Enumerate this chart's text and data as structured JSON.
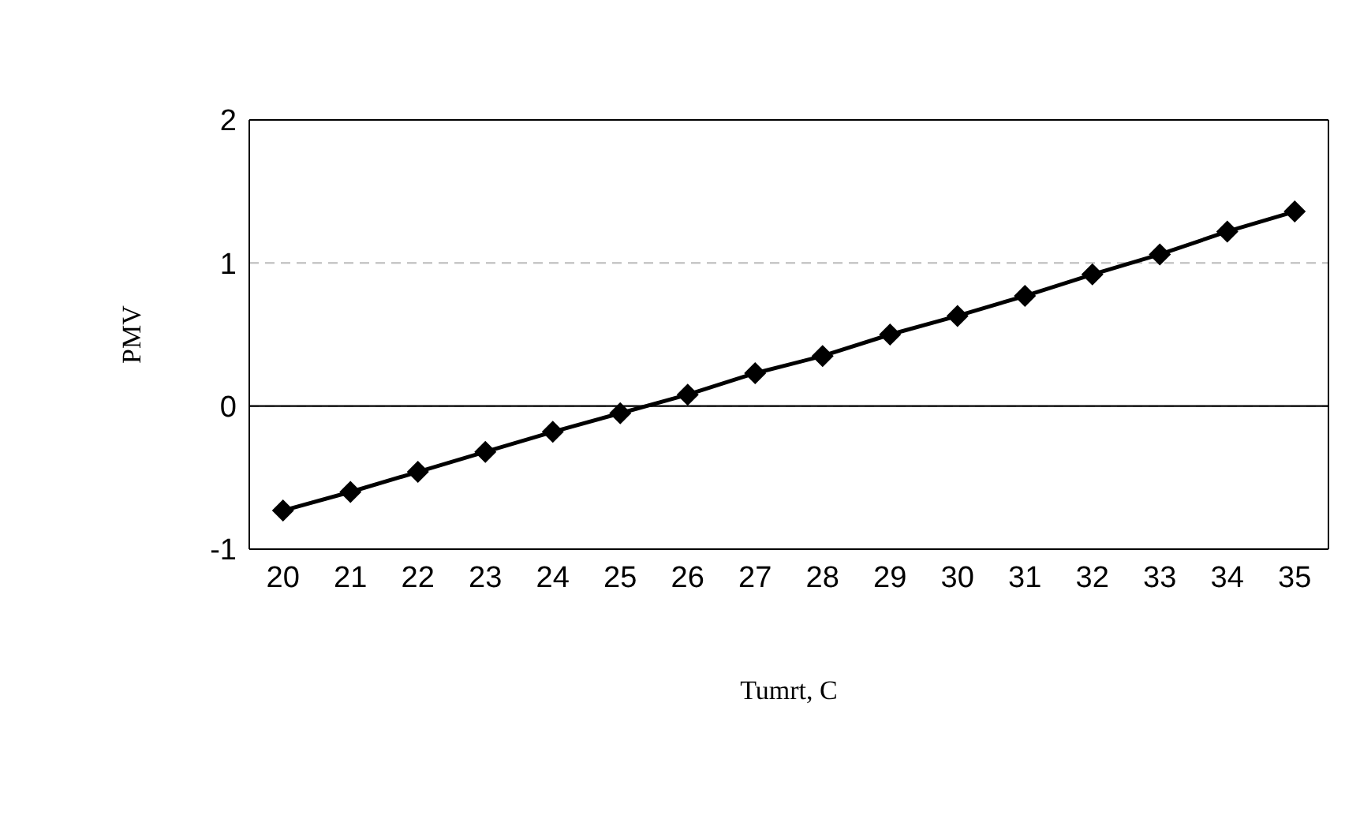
{
  "chart_data": {
    "type": "line",
    "xlabel": "Tumrt, C",
    "ylabel": "PMV",
    "x": [
      20,
      21,
      22,
      23,
      24,
      25,
      26,
      27,
      28,
      29,
      30,
      31,
      32,
      33,
      34,
      35
    ],
    "series": [
      {
        "color": "#000000",
        "values": [
          -0.73,
          -0.6,
          -0.46,
          -0.32,
          -0.18,
          -0.05,
          0.08,
          0.23,
          0.35,
          0.5,
          0.63,
          0.77,
          0.92,
          1.06,
          1.22,
          1.36
        ]
      }
    ],
    "xlim": [
      19.5,
      35.5
    ],
    "xticks": [
      20,
      21,
      22,
      23,
      24,
      25,
      26,
      27,
      28,
      29,
      30,
      31,
      32,
      33,
      34,
      35
    ],
    "ylim": [
      -1,
      2
    ],
    "yticks": [
      -1,
      0,
      1,
      2
    ],
    "grid": "y",
    "marker": "diamond",
    "line_style": "solid"
  }
}
